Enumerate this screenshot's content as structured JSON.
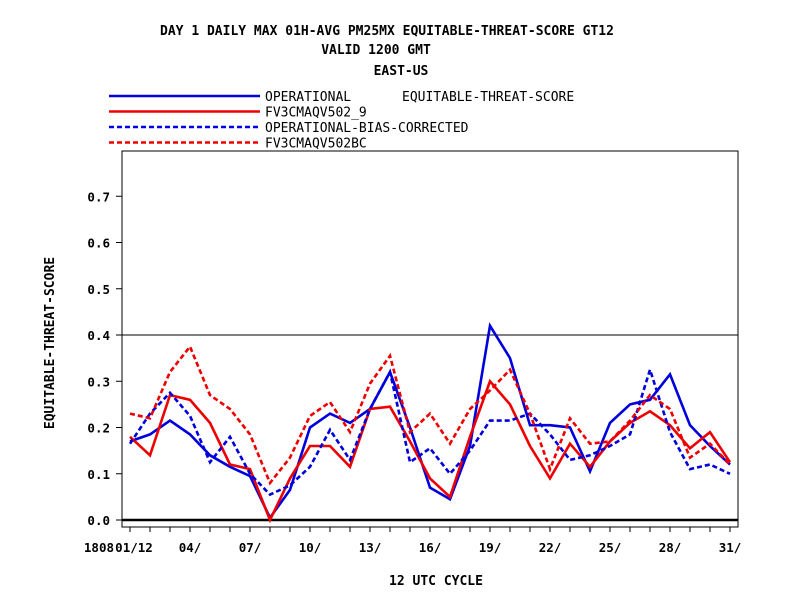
{
  "chart_data": {
    "type": "line",
    "title": [
      "DAY 1 DAILY MAX   01H-AVG PM25MX EQUITABLE-THREAT-SCORE GT12",
      "VALID 1200 GMT",
      "EAST-US"
    ],
    "xlabel": "12 UTC CYCLE",
    "ylabel": "EQUITABLE-THREAT-SCORE",
    "legend_note": "EQUITABLE-THREAT-SCORE",
    "ylim": [
      0,
      0.8
    ],
    "xlim": [
      0.6,
      31.4
    ],
    "grid": false,
    "reference_line": 0.4,
    "legend_position": "top-left",
    "y_ticks": [
      "0.0",
      "0.1",
      "0.2",
      "0.3",
      "0.4",
      "0.5",
      "0.6",
      "0.7"
    ],
    "x_ticks": [
      {
        "x": 1,
        "label": "01/12"
      },
      {
        "x": 4,
        "label": "04/"
      },
      {
        "x": 7,
        "label": "07/"
      },
      {
        "x": 10,
        "label": "10/"
      },
      {
        "x": 13,
        "label": "13/"
      },
      {
        "x": 16,
        "label": "16/"
      },
      {
        "x": 19,
        "label": "19/"
      },
      {
        "x": 22,
        "label": "22/"
      },
      {
        "x": 25,
        "label": "25/"
      },
      {
        "x": 28,
        "label": "28/"
      },
      {
        "x": 31,
        "label": "31/"
      }
    ],
    "x_prefix_label": "1808",
    "x": [
      1,
      2,
      3,
      4,
      5,
      6,
      7,
      8,
      9,
      10,
      11,
      12,
      13,
      14,
      15,
      16,
      17,
      18,
      19,
      20,
      21,
      22,
      23,
      24,
      25,
      26,
      27,
      28,
      29,
      30,
      31
    ],
    "series": [
      {
        "name": "OPERATIONAL",
        "color": "#0000dd",
        "dash": "solid",
        "values": [
          0.17,
          0.185,
          0.215,
          0.185,
          0.14,
          0.115,
          0.095,
          0.005,
          0.065,
          0.2,
          0.23,
          0.21,
          0.24,
          0.32,
          0.2,
          0.07,
          0.045,
          0.16,
          0.42,
          0.35,
          0.205,
          0.205,
          0.2,
          0.105,
          0.21,
          0.25,
          0.26,
          0.315,
          0.205,
          0.16,
          0.12
        ]
      },
      {
        "name": "FV3CMAQV502_9",
        "color": "#ee0000",
        "dash": "solid",
        "values": [
          0.18,
          0.14,
          0.27,
          0.26,
          0.21,
          0.12,
          0.11,
          0.0,
          0.09,
          0.16,
          0.16,
          0.115,
          0.24,
          0.245,
          0.17,
          0.09,
          0.05,
          0.18,
          0.3,
          0.25,
          0.16,
          0.09,
          0.165,
          0.115,
          0.17,
          0.21,
          0.235,
          0.205,
          0.155,
          0.19,
          0.125
        ]
      },
      {
        "name": "OPERATIONAL-BIAS-CORRECTED",
        "color": "#0000dd",
        "dash": "dashed",
        "values": [
          0.165,
          0.23,
          0.275,
          0.225,
          0.125,
          0.18,
          0.1,
          0.055,
          0.075,
          0.115,
          0.195,
          0.13,
          0.24,
          0.32,
          0.125,
          0.155,
          0.1,
          0.15,
          0.215,
          0.215,
          0.23,
          0.185,
          0.13,
          0.14,
          0.16,
          0.185,
          0.325,
          0.19,
          0.11,
          0.12,
          0.1
        ]
      },
      {
        "name": "FV3CMAQV502BC",
        "color": "#ee0000",
        "dash": "dashed",
        "values": [
          0.23,
          0.22,
          0.32,
          0.375,
          0.27,
          0.24,
          0.185,
          0.08,
          0.135,
          0.225,
          0.255,
          0.19,
          0.295,
          0.355,
          0.19,
          0.23,
          0.165,
          0.24,
          0.28,
          0.325,
          0.23,
          0.11,
          0.22,
          0.165,
          0.17,
          0.215,
          0.27,
          0.24,
          0.135,
          0.165,
          0.12
        ]
      }
    ]
  }
}
